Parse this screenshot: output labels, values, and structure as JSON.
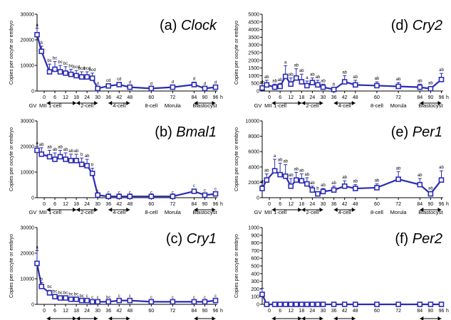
{
  "figure": {
    "ylabel": "Copies per oocyte  or embryo",
    "x_ticks": [
      "0",
      "6",
      "12",
      "18",
      "24",
      "30",
      "36",
      "42",
      "48",
      "60",
      "72",
      "84",
      "90",
      "96"
    ],
    "x_unit": "h",
    "stage_labels": [
      "GV",
      "MII",
      "1-cell",
      "2-cell",
      "4-cell",
      "8-cell",
      "Morula",
      "Blastocyst"
    ],
    "colors": {
      "line": "#2b2bb3",
      "marker_fill": "#ffffff",
      "error_bar": "#2b2bb3"
    }
  },
  "chart_data": [
    {
      "type": "line",
      "panel": "a",
      "title_prefix": "(a) ",
      "title_gene": "Clock",
      "ylim": [
        0,
        30000
      ],
      "yticks": [
        0,
        10000,
        20000,
        30000
      ],
      "x": [
        "GV",
        "MII",
        3,
        6,
        9,
        12,
        15,
        18,
        21,
        24,
        27,
        30,
        36,
        42,
        48,
        60,
        72,
        84,
        90,
        96
      ],
      "values": [
        22000,
        15500,
        7500,
        8500,
        7500,
        7000,
        6500,
        6000,
        5500,
        5500,
        5000,
        1000,
        2000,
        2500,
        1500,
        1000,
        1500,
        2500,
        1000,
        1500
      ],
      "errors": [
        2500,
        2000,
        3000,
        3000,
        2500,
        2500,
        2000,
        2000,
        2000,
        2000,
        2000,
        500,
        800,
        800,
        600,
        500,
        700,
        1000,
        500,
        600
      ],
      "sig_labels": [
        "a",
        "b",
        "bc",
        "bc",
        "bc",
        "bc",
        "bc",
        "bcd",
        "bcd",
        "bcd",
        "bcd",
        "d",
        "cd",
        "cd",
        "d",
        "d",
        "d",
        "d",
        "d",
        "d"
      ],
      "show_stage_labels": true
    },
    {
      "type": "line",
      "panel": "b",
      "title_prefix": "(b) ",
      "title_gene": "Bmal1",
      "ylim": [
        0,
        30000
      ],
      "yticks": [
        0,
        10000,
        20000,
        30000
      ],
      "x": [
        "GV",
        "MII",
        3,
        6,
        9,
        12,
        15,
        18,
        21,
        24,
        27,
        30,
        36,
        42,
        48,
        60,
        72,
        84,
        90,
        96
      ],
      "values": [
        18500,
        17000,
        16000,
        15000,
        16000,
        15000,
        14500,
        14500,
        13000,
        12500,
        9500,
        1000,
        500,
        500,
        500,
        500,
        500,
        2500,
        1000,
        1500
      ],
      "errors": [
        1500,
        2500,
        2500,
        2500,
        2500,
        2500,
        2500,
        2500,
        2500,
        2500,
        2000,
        300,
        200,
        200,
        200,
        200,
        200,
        800,
        500,
        600
      ],
      "sig_labels": [
        "a",
        "ab",
        "ab",
        "ab",
        "ab",
        "ab",
        "ab",
        "ab",
        "b",
        "ab",
        "b",
        "c",
        "c",
        "c",
        "c",
        "c",
        "c",
        "c",
        "c",
        "c"
      ],
      "show_stage_labels": true
    },
    {
      "type": "line",
      "panel": "c",
      "title_prefix": "(c) ",
      "title_gene": "Cry1",
      "ylim": [
        0,
        30000
      ],
      "yticks": [
        0,
        10000,
        20000,
        30000
      ],
      "x": [
        "GV",
        "MII",
        3,
        6,
        9,
        12,
        15,
        18,
        21,
        24,
        27,
        30,
        36,
        42,
        48,
        60,
        72,
        84,
        90,
        96
      ],
      "values": [
        16000,
        7000,
        4500,
        3000,
        2500,
        2500,
        2000,
        2000,
        1500,
        1500,
        1000,
        1000,
        1000,
        1500,
        1500,
        1000,
        1000,
        1000,
        1000,
        1500
      ],
      "errors": [
        5000,
        1500,
        1000,
        800,
        700,
        700,
        600,
        600,
        500,
        500,
        400,
        400,
        400,
        500,
        500,
        400,
        400,
        400,
        400,
        500
      ],
      "sig_labels": [
        "a",
        "b",
        "bc",
        "bc",
        "bc",
        "bc",
        "bc",
        "bc",
        "bc",
        "c",
        "c",
        "c",
        "bc",
        "c",
        "c",
        "c",
        "c",
        "c",
        "c",
        "c"
      ],
      "show_stage_labels": false
    },
    {
      "type": "line",
      "panel": "d",
      "title_prefix": "(d) ",
      "title_gene": "Cry2",
      "ylim": [
        0,
        5000
      ],
      "yticks": [
        0,
        500,
        1000,
        1500,
        2000,
        2500,
        3000,
        3500,
        4000,
        4500,
        5000
      ],
      "x": [
        "GV",
        "MII",
        3,
        6,
        9,
        12,
        15,
        18,
        21,
        24,
        27,
        30,
        36,
        42,
        48,
        60,
        72,
        84,
        90,
        96
      ],
      "values": [
        200,
        400,
        250,
        300,
        950,
        450,
        850,
        600,
        350,
        550,
        400,
        250,
        100,
        600,
        400,
        350,
        300,
        250,
        150,
        750
      ],
      "errors": [
        150,
        300,
        200,
        200,
        700,
        400,
        600,
        500,
        300,
        300,
        300,
        200,
        100,
        400,
        300,
        250,
        250,
        200,
        150,
        400
      ],
      "sig_labels": [
        "ab",
        "ab",
        "ab",
        "ab",
        "a",
        "ab",
        "ab",
        "ab",
        "a",
        "ab",
        "ab",
        "ab",
        "b",
        "ab",
        "ab",
        "ab",
        "ab",
        "ab",
        "ab",
        "ab"
      ],
      "show_stage_labels": true
    },
    {
      "type": "line",
      "panel": "e",
      "title_prefix": "(e) ",
      "title_gene": "Per1",
      "ylim": [
        0,
        10000
      ],
      "yticks": [
        0,
        2000,
        4000,
        6000,
        8000,
        10000
      ],
      "x": [
        "GV",
        "MII",
        3,
        6,
        9,
        12,
        15,
        18,
        21,
        24,
        27,
        30,
        36,
        42,
        48,
        60,
        72,
        84,
        90,
        96
      ],
      "values": [
        1200,
        2300,
        3500,
        3000,
        2800,
        1500,
        2300,
        2200,
        1800,
        1000,
        500,
        800,
        1000,
        1500,
        1200,
        1300,
        2400,
        1700,
        500,
        2300
      ],
      "errors": [
        400,
        800,
        1500,
        1500,
        1500,
        1000,
        1000,
        900,
        800,
        500,
        300,
        400,
        500,
        700,
        500,
        500,
        1000,
        800,
        300,
        1200
      ],
      "sig_labels": [
        "ab",
        "ab",
        "a",
        "ab",
        "ab",
        "ab",
        "ab",
        "ab",
        "ab",
        "ab",
        "b",
        "ab",
        "ab",
        "ab",
        "ab",
        "ab",
        "ab",
        "ab",
        "ab",
        "ab"
      ],
      "show_stage_labels": true
    },
    {
      "type": "line",
      "panel": "f",
      "title_prefix": "(f) ",
      "title_gene": "Per2",
      "ylim": [
        0,
        1000
      ],
      "yticks": [
        0,
        100,
        200,
        300,
        400,
        500,
        600,
        700,
        800,
        900,
        1000
      ],
      "x": [
        "GV",
        "MII",
        3,
        6,
        9,
        12,
        15,
        18,
        21,
        24,
        27,
        30,
        36,
        42,
        48,
        60,
        72,
        84,
        90,
        96
      ],
      "values": [
        130,
        0,
        0,
        0,
        0,
        0,
        0,
        0,
        0,
        0,
        0,
        0,
        0,
        0,
        0,
        0,
        0,
        0,
        0,
        0
      ],
      "errors": [
        80,
        0,
        0,
        0,
        0,
        0,
        0,
        0,
        0,
        0,
        0,
        0,
        0,
        0,
        0,
        0,
        0,
        0,
        0,
        0
      ],
      "sig_labels": [],
      "show_stage_labels": false
    }
  ]
}
